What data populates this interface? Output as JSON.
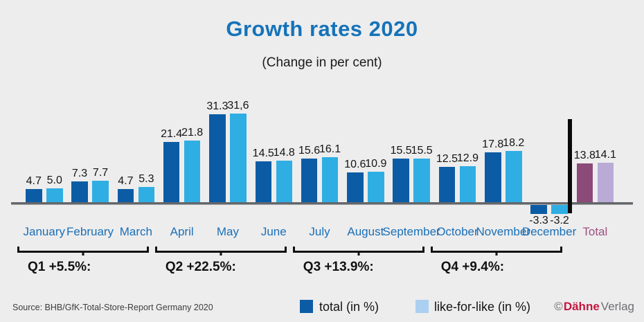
{
  "header": {
    "title": "Growth rates 2020",
    "subtitle": "(Change in per cent)"
  },
  "footer": {
    "source": "Source: BHB/GfK-Total-Store-Report Germany 2020",
    "legend": {
      "total_label": "total (in %)",
      "lfl_label": "like-for-like (in %)"
    },
    "copyright": {
      "symbol": "©",
      "brand": "Dähne",
      "suffix": "Verlag"
    }
  },
  "colors": {
    "bar_dark": "#0c5ca5",
    "bar_light": "#2faee3",
    "total_dark": "#8b4a78",
    "total_light": "#b9abd5",
    "month_label": "#1b6fb5",
    "total_label": "#9d4f7e",
    "accent_title": "#1573b9",
    "brand_red": "#c3173f"
  },
  "chart_data": {
    "type": "bar",
    "title": "Growth rates 2020",
    "subtitle": "(Change in per cent)",
    "categories": [
      "January",
      "February",
      "March",
      "April",
      "May",
      "June",
      "July",
      "August",
      "September",
      "October",
      "November",
      "December",
      "Total"
    ],
    "series": [
      {
        "name": "total (in %)",
        "values": [
          4.7,
          7.3,
          4.7,
          21.4,
          31.3,
          14.5,
          15.6,
          10.6,
          15.5,
          12.5,
          17.8,
          -3.3,
          13.8
        ]
      },
      {
        "name": "like-for-like (in %)",
        "values": [
          5.0,
          7.7,
          5.3,
          21.8,
          31.6,
          14.8,
          16.1,
          10.9,
          15.5,
          12.9,
          18.2,
          -3.2,
          14.1
        ]
      }
    ],
    "value_labels": [
      [
        "4.7",
        "5.0"
      ],
      [
        "7.3",
        "7.7"
      ],
      [
        "4.7",
        "5.3"
      ],
      [
        "21.4",
        "21.8"
      ],
      [
        "31.3",
        "31,6"
      ],
      [
        "14.5",
        "14.8"
      ],
      [
        "15.6",
        "16.1"
      ],
      [
        "10.6",
        "10.9"
      ],
      [
        "15.5",
        "15.5"
      ],
      [
        "12.5",
        "12.9"
      ],
      [
        "17.8",
        "18.2"
      ],
      [
        "-3.3",
        "-3.2"
      ],
      [
        "13.8",
        "14.1"
      ]
    ],
    "quarters": [
      {
        "label": "Q1 +5.5%:",
        "from": 0,
        "to": 2
      },
      {
        "label": "Q2 +22.5%:",
        "from": 3,
        "to": 5
      },
      {
        "label": "Q3 +13.9%:",
        "from": 6,
        "to": 8
      },
      {
        "label": "Q4 +9.4%:",
        "from": 9,
        "to": 11
      }
    ],
    "ylim": [
      -5,
      33
    ],
    "grid": false,
    "legend_position": "bottom"
  }
}
